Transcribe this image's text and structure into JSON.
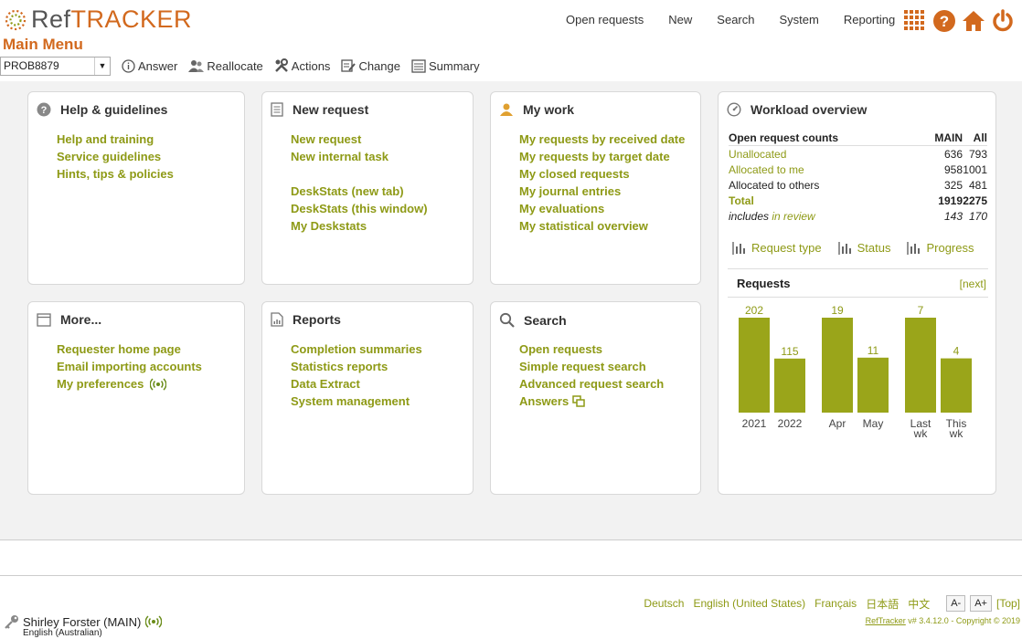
{
  "app": {
    "logo_ref": "Ref",
    "logo_tracker": "TRACKER",
    "title": "Main Menu"
  },
  "topnav": [
    "Open requests",
    "New",
    "Search",
    "System",
    "Reporting"
  ],
  "toolbar": {
    "select_value": "PROB8879",
    "items": [
      "Answer",
      "Reallocate",
      "Actions",
      "Change",
      "Summary"
    ]
  },
  "panels": {
    "help": {
      "title": "Help & guidelines",
      "links": [
        "Help and training",
        "Service guidelines",
        "Hints, tips & policies"
      ]
    },
    "new_request": {
      "title": "New request",
      "links": [
        "New request",
        "New internal task"
      ],
      "links2": [
        "DeskStats (new tab)",
        "DeskStats (this window)",
        "My Deskstats"
      ]
    },
    "my_work": {
      "title": "My work",
      "links": [
        "My requests by received date",
        "My requests by target date",
        "My closed requests",
        "My journal entries",
        "My evaluations",
        "My statistical overview"
      ]
    },
    "more": {
      "title": "More...",
      "links": [
        "Requester home page",
        "Email importing accounts",
        "My preferences"
      ]
    },
    "reports": {
      "title": "Reports",
      "links": [
        "Completion summaries",
        "Statistics reports",
        "Data Extract",
        "System management"
      ]
    },
    "search": {
      "title": "Search",
      "links": [
        "Open requests",
        "Simple request search",
        "Advanced request search",
        "Answers"
      ]
    }
  },
  "workload": {
    "title": "Workload overview",
    "header": {
      "label": "Open request counts",
      "c1": "MAIN",
      "c2": "All"
    },
    "rows": [
      {
        "label": "Unallocated",
        "c1": "636",
        "c2": "793"
      },
      {
        "label": "Allocated to me",
        "c1": "958",
        "c2": "1001"
      },
      {
        "label": "Allocated to others",
        "c1": "325",
        "c2": "481"
      },
      {
        "label": "Total",
        "c1": "1919",
        "c2": "2275"
      }
    ],
    "includes": {
      "prefix": "includes",
      "suffix": "in review",
      "c1": "143",
      "c2": "170"
    },
    "tabs": [
      "Request type",
      "Status",
      "Progress"
    ],
    "chart_title": "Requests",
    "next": "[next]"
  },
  "chart_data": {
    "type": "bar",
    "title": "Requests",
    "categories": [
      "2021",
      "2022",
      "Apr",
      "May",
      "Last wk",
      "This wk"
    ],
    "values": [
      202,
      115,
      19,
      11,
      7,
      4
    ],
    "groups": [
      [
        0,
        1
      ],
      [
        2,
        3
      ],
      [
        4,
        5
      ]
    ],
    "group_max": [
      202,
      19,
      7
    ],
    "bar_color": "#9aa51a"
  },
  "footer": {
    "languages": [
      "Deutsch",
      "English (United States)",
      "Français",
      "日本語",
      "中文"
    ],
    "font_minus": "A-",
    "font_plus": "A+",
    "top": "[Top]",
    "user": "Shirley Forster (MAIN)",
    "locale": "English (Australian)",
    "copyright_link": "RefTracker",
    "copyright_text": " v# 3.4.12.0 - Copyright © 2019"
  },
  "colors": {
    "accent": "#d2691e",
    "link": "#8e9a16"
  }
}
